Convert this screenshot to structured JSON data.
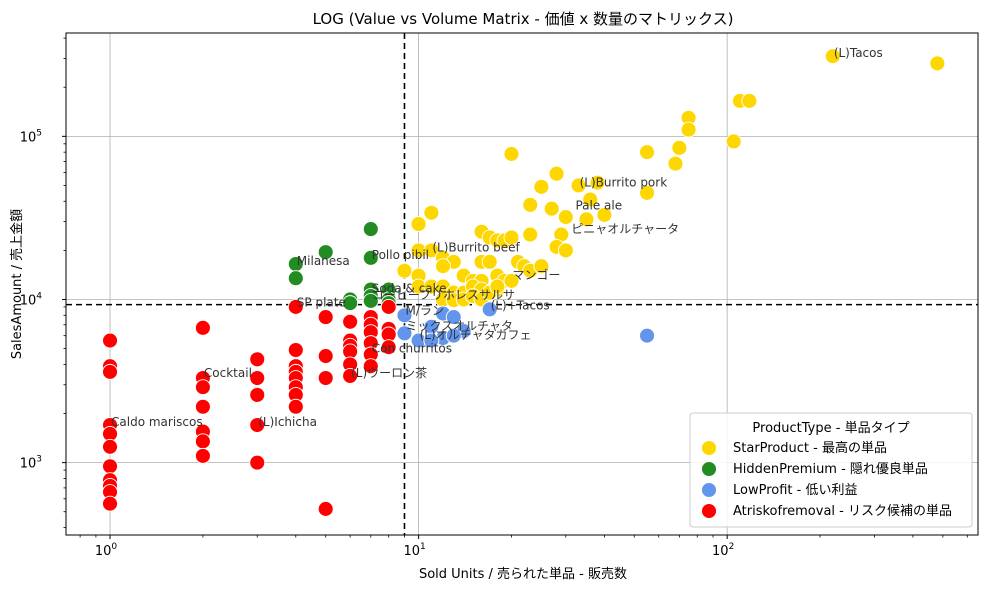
{
  "chart_data": {
    "type": "scatter",
    "title": "LOG (Value vs Volume Matrix - 価値 x 数量のマトリックス)",
    "xlabel": "Sold Units / 売られた単品 - 販売数",
    "ylabel": "SalesAmount / 売上金額",
    "xscale": "log",
    "yscale": "log",
    "xlim": [
      0.72,
      650
    ],
    "ylim": [
      360,
      430000
    ],
    "grid": true,
    "x_ticks": [
      {
        "base": "10",
        "exp": "0"
      },
      {
        "base": "10",
        "exp": "1"
      },
      {
        "base": "10",
        "exp": "2"
      }
    ],
    "y_ticks": [
      {
        "base": "10",
        "exp": "3"
      },
      {
        "base": "10",
        "exp": "4"
      },
      {
        "base": "10",
        "exp": "5"
      }
    ],
    "threshold_x": 9,
    "threshold_y": 9300,
    "legend": {
      "title": "ProductType - 単品タイプ",
      "placement": "lower-right",
      "entries": [
        {
          "key": "star",
          "label": "StarProduct - 最高の単品",
          "color": "#FFD700"
        },
        {
          "key": "hidden",
          "label": "HiddenPremium - 隠れ優良単品",
          "color": "#228B22"
        },
        {
          "key": "low",
          "label": "LowProfit - 低い利益",
          "color": "#6495ED"
        },
        {
          "key": "risk",
          "label": "Atriskofremoval - リスク候補の単品",
          "color": "#FF0000"
        }
      ]
    },
    "series": [
      {
        "key": "star",
        "points": [
          [
            220,
            310000
          ],
          [
            480,
            280000
          ],
          [
            110,
            165000
          ],
          [
            118,
            165000
          ],
          [
            75,
            130000
          ],
          [
            75,
            110000
          ],
          [
            105,
            93000
          ],
          [
            70,
            85000
          ],
          [
            68,
            68000
          ],
          [
            20,
            78000
          ],
          [
            55,
            80000
          ],
          [
            28,
            59000
          ],
          [
            33,
            50000
          ],
          [
            25,
            49000
          ],
          [
            38,
            52000
          ],
          [
            36,
            41000
          ],
          [
            55,
            45000
          ],
          [
            27,
            36000
          ],
          [
            30,
            32000
          ],
          [
            35,
            31000
          ],
          [
            40,
            33000
          ],
          [
            23,
            38000
          ],
          [
            10,
            29000
          ],
          [
            11,
            34000
          ],
          [
            16,
            26000
          ],
          [
            17,
            24000
          ],
          [
            18,
            23000
          ],
          [
            19,
            23000
          ],
          [
            20,
            24000
          ],
          [
            23,
            25000
          ],
          [
            29,
            25000
          ],
          [
            28,
            21000
          ],
          [
            30,
            20000
          ],
          [
            10,
            20000
          ],
          [
            11,
            20000
          ],
          [
            12,
            18000
          ],
          [
            13,
            17000
          ],
          [
            16,
            17000
          ],
          [
            17,
            17000
          ],
          [
            21,
            17000
          ],
          [
            22,
            16000
          ],
          [
            23,
            15000
          ],
          [
            25,
            16000
          ],
          [
            9,
            15000
          ],
          [
            10,
            14000
          ],
          [
            12,
            16000
          ],
          [
            14,
            14000
          ],
          [
            15,
            13000
          ],
          [
            16,
            13000
          ],
          [
            18,
            14000
          ],
          [
            19,
            13000
          ],
          [
            20,
            13000
          ],
          [
            10,
            12000
          ],
          [
            11,
            12000
          ],
          [
            12,
            12000
          ],
          [
            13,
            11000
          ],
          [
            14,
            11000
          ],
          [
            15,
            12000
          ],
          [
            16,
            11500
          ],
          [
            17,
            11000
          ],
          [
            18,
            11500
          ],
          [
            12,
            10000
          ],
          [
            13,
            9900
          ],
          [
            14,
            10000
          ],
          [
            15,
            10500
          ],
          [
            16,
            10000
          ],
          [
            17,
            11000
          ],
          [
            18,
            12000
          ]
        ]
      },
      {
        "key": "hidden",
        "points": [
          [
            7,
            27000
          ],
          [
            5,
            19500
          ],
          [
            4,
            16500
          ],
          [
            4,
            13500
          ],
          [
            7,
            18000
          ],
          [
            7,
            11500
          ],
          [
            8,
            11500
          ],
          [
            6,
            10000
          ],
          [
            6,
            9500
          ],
          [
            7,
            10500
          ],
          [
            7,
            9800
          ],
          [
            8,
            10000
          ],
          [
            8,
            9500
          ]
        ]
      },
      {
        "key": "low",
        "points": [
          [
            55,
            6000
          ],
          [
            17,
            8700
          ],
          [
            9,
            8000
          ],
          [
            9,
            6200
          ],
          [
            10,
            5600
          ],
          [
            11,
            6800
          ],
          [
            12,
            8200
          ],
          [
            13,
            7800
          ],
          [
            14,
            6400
          ],
          [
            12,
            5800
          ],
          [
            11,
            5600
          ],
          [
            13,
            6000
          ]
        ]
      },
      {
        "key": "risk",
        "points": [
          [
            1,
            5600
          ],
          [
            1,
            3900
          ],
          [
            1,
            3600
          ],
          [
            1,
            1700
          ],
          [
            1,
            1500
          ],
          [
            1,
            1250
          ],
          [
            1,
            950
          ],
          [
            1,
            780
          ],
          [
            1,
            720
          ],
          [
            1,
            660
          ],
          [
            1,
            560
          ],
          [
            2,
            6700
          ],
          [
            2,
            3300
          ],
          [
            2,
            2900
          ],
          [
            2,
            2200
          ],
          [
            2,
            1550
          ],
          [
            2,
            1350
          ],
          [
            2,
            1100
          ],
          [
            3,
            4300
          ],
          [
            3,
            3300
          ],
          [
            3,
            2600
          ],
          [
            3,
            1700
          ],
          [
            3,
            1000
          ],
          [
            4,
            9000
          ],
          [
            4,
            4900
          ],
          [
            4,
            3900
          ],
          [
            4,
            3600
          ],
          [
            4,
            3300
          ],
          [
            4,
            2900
          ],
          [
            4,
            2600
          ],
          [
            4,
            2200
          ],
          [
            5,
            7800
          ],
          [
            5,
            4500
          ],
          [
            5,
            3300
          ],
          [
            5,
            520
          ],
          [
            6,
            7300
          ],
          [
            6,
            5600
          ],
          [
            6,
            5200
          ],
          [
            6,
            4800
          ],
          [
            6,
            4000
          ],
          [
            6,
            3400
          ],
          [
            7,
            7800
          ],
          [
            7,
            7000
          ],
          [
            7,
            6300
          ],
          [
            7,
            5400
          ],
          [
            7,
            4600
          ],
          [
            7,
            3900
          ],
          [
            8,
            9000
          ],
          [
            8,
            6600
          ],
          [
            8,
            6100
          ],
          [
            8,
            5100
          ]
        ]
      }
    ],
    "annotations": [
      {
        "text": "(L)Tacos",
        "x": 220,
        "y": 310000
      },
      {
        "text": "(L)Burrito pork",
        "x": 33,
        "y": 50000
      },
      {
        "text": "Pale ale",
        "x": 32,
        "y": 36000
      },
      {
        "text": "ピニャオルチャータ",
        "x": 31,
        "y": 26000
      },
      {
        "text": "(L)Burrito beef",
        "x": 11,
        "y": 20000
      },
      {
        "text": "Pollo pibil",
        "x": 7,
        "y": 18000
      },
      {
        "text": "Milanesa",
        "x": 4,
        "y": 16500
      },
      {
        "text": "マンゴー",
        "x": 20,
        "y": 13500
      },
      {
        "text": "Soda & cake",
        "x": 7,
        "y": 11200
      },
      {
        "text": "コーヒーフリホレスサルサ",
        "x": 7,
        "y": 10200
      },
      {
        "text": "SP plate",
        "x": 4,
        "y": 9200
      },
      {
        "text": "(L)+Tacos",
        "x": 17,
        "y": 8800
      },
      {
        "text": "M/ラン",
        "x": 9,
        "y": 8200
      },
      {
        "text": "ミックスオルチャタ",
        "x": 9,
        "y": 6600
      },
      {
        "text": "(L)オルチャタカフェ",
        "x": 10,
        "y": 5800
      },
      {
        "text": "Con churritos",
        "x": 7,
        "y": 4800
      },
      {
        "text": "Cocktail",
        "x": 2,
        "y": 3400
      },
      {
        "text": "(L)ウーロン茶",
        "x": 6,
        "y": 3400
      },
      {
        "text": "Caldo mariscos",
        "x": 1,
        "y": 1700
      },
      {
        "text": "(L)Ichicha",
        "x": 3,
        "y": 1700
      }
    ]
  }
}
